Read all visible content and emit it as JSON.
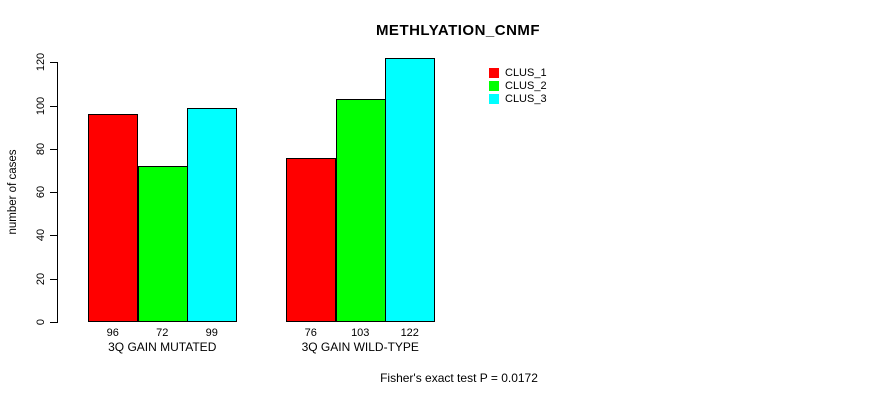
{
  "chart_data": {
    "type": "bar",
    "title": "METHLYATION_CNMF",
    "ylabel": "number of cases",
    "xlabel": "",
    "ylim": [
      0,
      120
    ],
    "yticks": [
      0,
      20,
      40,
      60,
      80,
      100,
      120
    ],
    "grid": false,
    "legend_position": "top-right",
    "categories": [
      "3Q GAIN MUTATED",
      "3Q GAIN WILD-TYPE"
    ],
    "series": [
      {
        "name": "CLUS_1",
        "color": "#ff0000",
        "values": [
          96,
          76
        ]
      },
      {
        "name": "CLUS_2",
        "color": "#00ff00",
        "values": [
          72,
          103
        ]
      },
      {
        "name": "CLUS_3",
        "color": "#00ffff",
        "values": [
          99,
          122
        ]
      }
    ],
    "groups": [
      {
        "label": "3Q GAIN MUTATED",
        "values": [
          96,
          72,
          99
        ]
      },
      {
        "label": "3Q GAIN WILD-TYPE",
        "values": [
          76,
          103,
          122
        ]
      }
    ],
    "legend": [
      {
        "label": "CLUS_1",
        "color": "#ff0000"
      },
      {
        "label": "CLUS_2",
        "color": "#00ff00"
      },
      {
        "label": "CLUS_3",
        "color": "#00ffff"
      }
    ],
    "bar_border_color": "#000000",
    "footer": "Fisher's exact test P = 0.0172"
  }
}
